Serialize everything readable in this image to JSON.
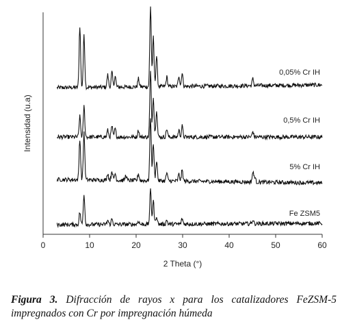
{
  "chart_data": {
    "type": "line",
    "title": "",
    "xlabel": "2 Theta (°)",
    "ylabel": "Intensidad (u.a)",
    "xlim": [
      0,
      60
    ],
    "x_ticks": [
      "0",
      "10",
      "20",
      "30",
      "40",
      "50",
      "60"
    ],
    "y_ticks": [],
    "grid": false,
    "legend": "inline labels at right end of each trace",
    "offset_stacked": true,
    "series": [
      {
        "name": "0,05% Cr IH",
        "peaks": [
          [
            7.9,
            90
          ],
          [
            8.8,
            78
          ],
          [
            13.9,
            18
          ],
          [
            14.8,
            22
          ],
          [
            15.5,
            16
          ],
          [
            20.5,
            12
          ],
          [
            23.1,
            118
          ],
          [
            23.7,
            72
          ],
          [
            24.4,
            45
          ],
          [
            26.6,
            14
          ],
          [
            29.2,
            16
          ],
          [
            29.9,
            20
          ],
          [
            45.1,
            10
          ]
        ],
        "baseline_end": 4
      },
      {
        "name": "0,5% Cr IH",
        "peaks": [
          [
            7.9,
            30
          ],
          [
            8.8,
            45
          ],
          [
            13.9,
            10
          ],
          [
            14.8,
            16
          ],
          [
            15.5,
            12
          ],
          [
            20.5,
            10
          ],
          [
            23.1,
            95
          ],
          [
            23.7,
            60
          ],
          [
            24.4,
            40
          ],
          [
            26.6,
            12
          ],
          [
            29.2,
            10
          ],
          [
            29.9,
            16
          ],
          [
            45.1,
            8
          ]
        ],
        "baseline_end": 0
      },
      {
        "name": "5% Cr IH",
        "peaks": [
          [
            7.9,
            60
          ],
          [
            8.8,
            70
          ],
          [
            13.9,
            10
          ],
          [
            14.8,
            14
          ],
          [
            15.5,
            10
          ],
          [
            17.8,
            8
          ],
          [
            20.5,
            10
          ],
          [
            23.1,
            92
          ],
          [
            23.7,
            55
          ],
          [
            24.4,
            30
          ],
          [
            26.6,
            12
          ],
          [
            29.2,
            10
          ],
          [
            29.9,
            16
          ],
          [
            45.1,
            14
          ],
          [
            45.5,
            8
          ]
        ],
        "baseline_end": -5
      },
      {
        "name": "Fe ZSM5",
        "peaks": [
          [
            7.9,
            18
          ],
          [
            8.8,
            45
          ],
          [
            13.9,
            6
          ],
          [
            14.8,
            8
          ],
          [
            20.5,
            5
          ],
          [
            23.1,
            50
          ],
          [
            23.7,
            35
          ],
          [
            24.4,
            12
          ],
          [
            26.6,
            6
          ],
          [
            29.9,
            8
          ],
          [
            45.1,
            6
          ]
        ],
        "baseline_end": 2
      }
    ]
  },
  "caption": {
    "bold": "Figura 3.",
    "text": " Difracción de rayos x para los catalizadores FeZSM-5 impregnados con Cr por impregnación húmeda"
  }
}
